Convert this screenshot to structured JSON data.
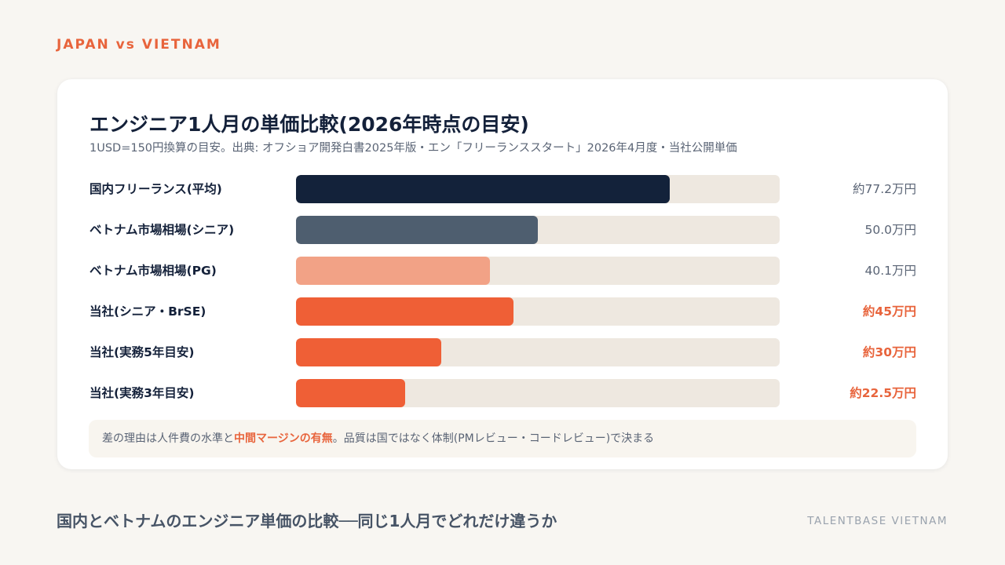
{
  "eyebrow": "JAPAN vs VIETNAM",
  "chart_data": {
    "type": "bar",
    "orientation": "horizontal",
    "title": "エンジニア1人月の単価比較(2026年時点の目安)",
    "subtitle": "1USD=150円換算の目安。出典: オフショア開発白書2025年版・エン「フリーランススタート」2026年4月度・当社公開単価",
    "unit": "万円",
    "xlim": [
      0,
      100
    ],
    "categories": [
      "国内フリーランス(平均)",
      "ベトナム市場相場(シニア)",
      "ベトナム市場相場(PG)",
      "当社(シニア・BrSE)",
      "当社(実務5年目安)",
      "当社(実務3年目安)"
    ],
    "values": [
      77.2,
      50.0,
      40.1,
      45,
      30,
      22.5
    ],
    "value_labels": [
      "約77.2万円",
      "50.0万円",
      "40.1万円",
      "約45万円",
      "約30万円",
      "約22.5万円"
    ],
    "colors": [
      "#13223a",
      "#4e5e6f",
      "#f2a286",
      "#ef5f36",
      "#ef5f36",
      "#ef5f36"
    ],
    "highlight": [
      false,
      false,
      false,
      true,
      true,
      true
    ]
  },
  "note": {
    "before": "差の理由は人件費の水準と",
    "emphasis": "中間マージンの有無",
    "after": "。品質は国ではなく体制(PMレビュー・コードレビュー)で決まる"
  },
  "footer": {
    "title": "国内とベトナムのエンジニア単価の比較──同じ1人月でどれだけ違うか",
    "brand": "TALENTBASE VIETNAM"
  }
}
